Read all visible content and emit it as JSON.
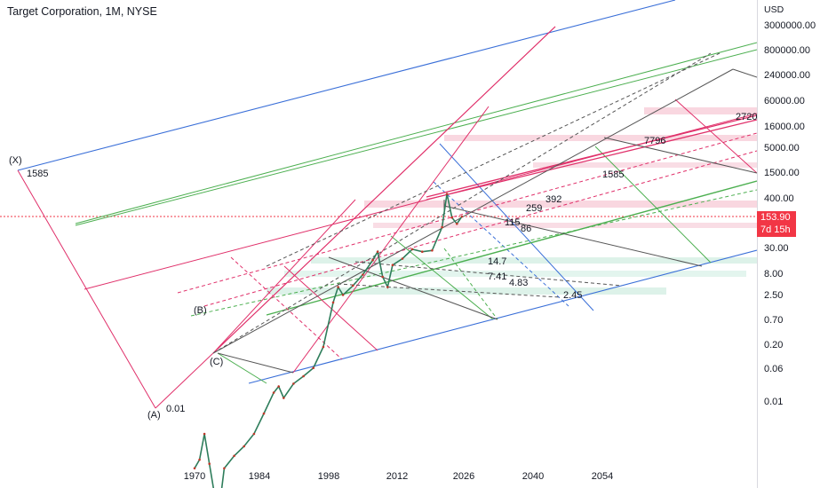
{
  "header": {
    "title": "Target Corporation, 1M, NYSE"
  },
  "price_axis": {
    "currency": "USD",
    "ticks": [
      "3000000.00",
      "800000.00",
      "240000.00",
      "60000.00",
      "16000.00",
      "5000.00",
      "1500.00",
      "400.00",
      "30.00",
      "8.00",
      "2.50",
      "0.70",
      "0.20",
      "0.06",
      "0.01"
    ],
    "last_price": "153.90",
    "countdown": "7d 15h"
  },
  "time_axis": {
    "ticks": [
      "1970",
      "1984",
      "1998",
      "2012",
      "2026",
      "2040",
      "2054"
    ]
  },
  "wave_labels": [
    {
      "text": "(X)"
    },
    {
      "text": "1585"
    },
    {
      "text": "(A)"
    },
    {
      "text": "0.01"
    },
    {
      "text": "(B)"
    },
    {
      "text": "(C)"
    }
  ],
  "level_labels": [
    "2720",
    "7796",
    "1585",
    "392",
    "259",
    "115",
    "86",
    "14.7",
    "7.41",
    "4.83",
    "2.45"
  ],
  "colors": {
    "blue": "#3a6fd8",
    "green": "#4caf50",
    "pink": "#e0306a",
    "gray": "#555555",
    "red_tag": "#f23645"
  },
  "chart_data": {
    "type": "line",
    "title": "Target Corporation, 1M, NYSE",
    "scale": "log",
    "x_range": [
      1970,
      2060
    ],
    "y_range_usd": [
      0.01,
      3000000
    ],
    "last_price": 153.9,
    "series": [
      {
        "values_x": [
          1970,
          1971,
          1972,
          1973,
          1974,
          1975,
          1976,
          1978,
          1980,
          1982,
          1984,
          1986,
          1987,
          1988,
          1990,
          1992,
          1994,
          1996,
          1998,
          1999,
          2000,
          2002,
          2004,
          2006,
          2007,
          2008,
          2009,
          2010,
          2012,
          2014,
          2016,
          2018,
          2020,
          2021,
          2022,
          2023,
          2024
        ],
        "values_y": [
          0.45,
          0.55,
          1.0,
          0.5,
          0.25,
          0.18,
          0.45,
          0.6,
          0.75,
          1.0,
          1.6,
          2.6,
          3.0,
          2.3,
          3.2,
          3.8,
          4.6,
          7.5,
          21,
          30,
          25,
          31,
          40,
          56,
          68,
          38,
          30,
          50,
          58,
          72,
          68,
          70,
          120,
          260,
          150,
          130,
          153.9
        ]
      }
    ]
  }
}
